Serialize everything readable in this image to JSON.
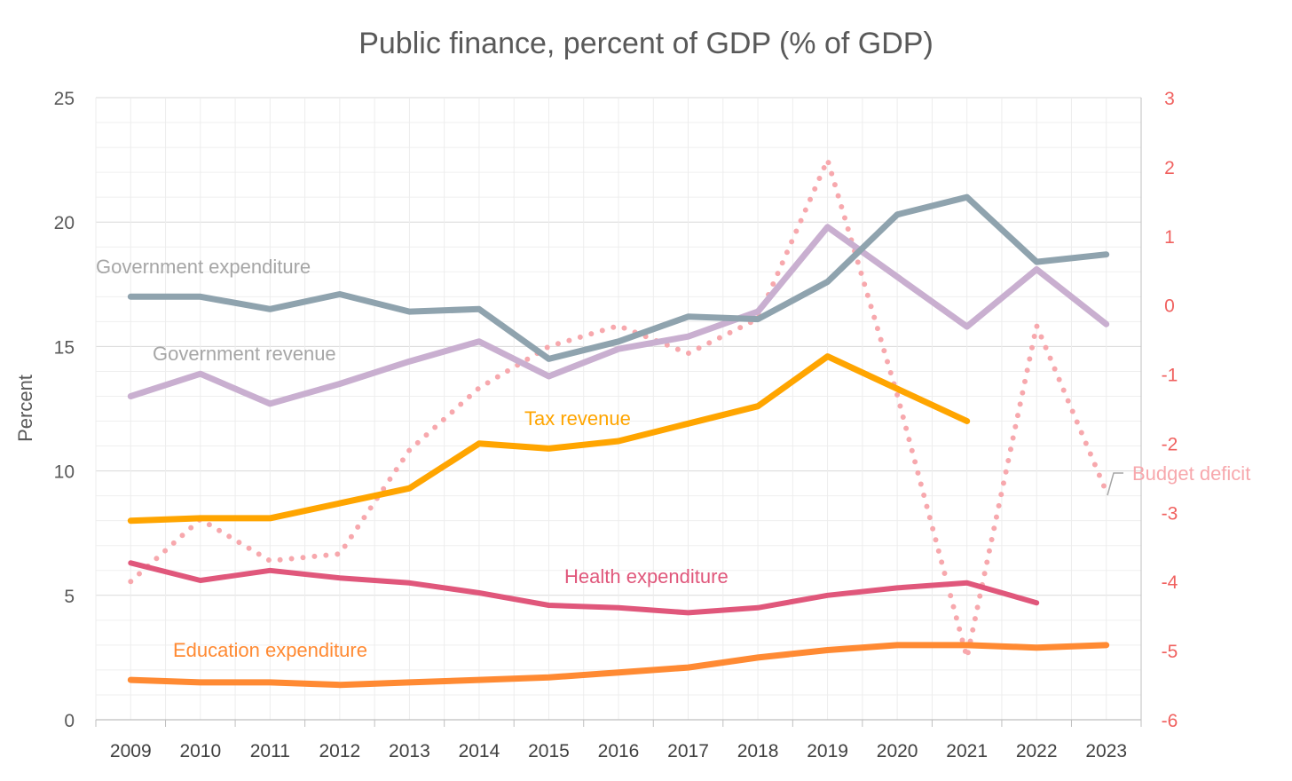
{
  "chart_data": {
    "type": "line",
    "title": "Public finance, percent of GDP (% of GDP)",
    "xlabel": "",
    "ylabel": "Percent",
    "ylim": [
      0,
      25
    ],
    "y_ticks": [
      "0",
      "5",
      "10",
      "15",
      "20",
      "25"
    ],
    "y2lim": [
      -6,
      3
    ],
    "y2_ticks": [
      "-6",
      "-5",
      "-4",
      "-3",
      "-2",
      "-1",
      "0",
      "1",
      "2",
      "3"
    ],
    "categories": [
      "2009",
      "2010",
      "2011",
      "2012",
      "2013",
      "2014",
      "2015",
      "2016",
      "2017",
      "2018",
      "2019",
      "2020",
      "2021",
      "2022",
      "2023"
    ],
    "grid": true,
    "legend": "inline labels",
    "series": [
      {
        "name": "Government expenditure",
        "axis": "left",
        "color": "#8fa3ae",
        "label_color": "#a6a6a6",
        "values": [
          17.0,
          17.0,
          16.5,
          17.1,
          16.4,
          16.5,
          14.5,
          15.2,
          16.2,
          16.1,
          17.6,
          20.3,
          21.0,
          18.4,
          18.7
        ]
      },
      {
        "name": "Government revenue",
        "axis": "left",
        "color": "#c9afd0",
        "label_color": "#a6a6a6",
        "values": [
          13.0,
          13.9,
          12.7,
          13.5,
          14.4,
          15.2,
          13.8,
          14.9,
          15.4,
          16.4,
          19.8,
          17.8,
          15.8,
          18.1,
          15.9
        ]
      },
      {
        "name": "Tax revenue",
        "axis": "left",
        "color": "#ffa500",
        "label_color": "#ffa500",
        "values": [
          8.0,
          8.1,
          8.1,
          8.7,
          9.3,
          11.1,
          10.9,
          11.2,
          11.9,
          12.6,
          14.6,
          13.3,
          12.0,
          null,
          null
        ]
      },
      {
        "name": "Health expenditure",
        "axis": "left",
        "color": "#e0577b",
        "label_color": "#e0577b",
        "values": [
          6.3,
          5.6,
          6.0,
          5.7,
          5.5,
          5.1,
          4.6,
          4.5,
          4.3,
          4.5,
          5.0,
          5.3,
          5.5,
          4.7,
          null
        ]
      },
      {
        "name": "Education expenditure",
        "axis": "left",
        "color": "#ff8a33",
        "label_color": "#ff8a33",
        "values": [
          1.6,
          1.5,
          1.5,
          1.4,
          1.5,
          1.6,
          1.7,
          1.9,
          2.1,
          2.5,
          2.8,
          3.0,
          3.0,
          2.9,
          3.0
        ]
      },
      {
        "name": "Budget deficit",
        "axis": "right",
        "color": "#f7a8ad",
        "label_color": "#f7a8ad",
        "dotted": true,
        "values": [
          -4.0,
          -3.1,
          -3.7,
          -3.6,
          -2.1,
          -1.2,
          -0.6,
          -0.3,
          -0.7,
          -0.2,
          2.1,
          -1.3,
          -5.1,
          -0.3,
          -2.7
        ]
      }
    ]
  }
}
